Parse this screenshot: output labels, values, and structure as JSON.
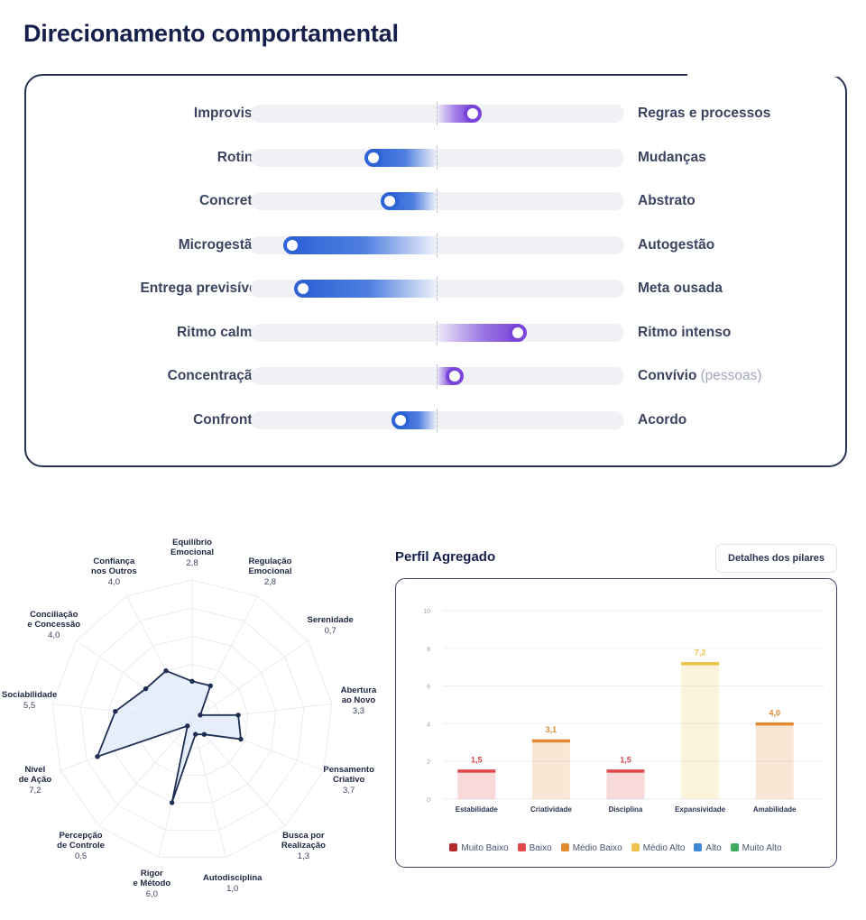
{
  "page": {
    "title": "Direcionamento comportamental"
  },
  "scales": [
    {
      "left": "Improviso",
      "right": "Regras e processos",
      "right_sub": "",
      "value": 0.2,
      "color": "purple"
    },
    {
      "left": "Rotina",
      "right": "Mudanças",
      "right_sub": "",
      "value": -0.35,
      "color": "blue"
    },
    {
      "left": "Concreto",
      "right": "Abstrato",
      "right_sub": "",
      "value": -0.26,
      "color": "blue"
    },
    {
      "left": "Microgestão",
      "right": "Autogestão",
      "right_sub": "",
      "value": -0.8,
      "color": "blue"
    },
    {
      "left": "Entrega previsível",
      "right": "Meta ousada",
      "right_sub": "",
      "value": -0.74,
      "color": "blue"
    },
    {
      "left": "Ritmo calmo",
      "right": "Ritmo intenso",
      "right_sub": "",
      "value": 0.45,
      "color": "purple"
    },
    {
      "left": "Concentração",
      "right": "Convívio",
      "right_sub": "(pessoas)",
      "value": 0.1,
      "color": "purple"
    },
    {
      "left": "Confronto",
      "right": "Acordo",
      "right_sub": "",
      "value": -0.2,
      "color": "blue"
    }
  ],
  "aggregate": {
    "title": "Perfil Agregado",
    "details_button": "Detalhes dos pilares"
  },
  "chart_data": [
    {
      "type": "radar",
      "scale_max": 10,
      "series": [
        {
          "values": [
            2.8,
            2.8,
            0.7,
            3.3,
            3.7,
            1.3,
            1.0,
            6.0,
            0.5,
            7.2,
            5.5,
            4.0,
            4.0
          ]
        }
      ],
      "axes": [
        {
          "name": [
            "Equilíbrio",
            "Emocional"
          ],
          "value_label": "2,8"
        },
        {
          "name": [
            "Regulação",
            "Emocional"
          ],
          "value_label": "2,8"
        },
        {
          "name": [
            "Serenidade"
          ],
          "value_label": "0,7"
        },
        {
          "name": [
            "Abertura",
            "ao Novo"
          ],
          "value_label": "3,3"
        },
        {
          "name": [
            "Pensamento",
            "Criativo"
          ],
          "value_label": "3,7"
        },
        {
          "name": [
            "Busca por",
            "Realização"
          ],
          "value_label": "1,3"
        },
        {
          "name": [
            "Autodisciplina"
          ],
          "value_label": "1,0"
        },
        {
          "name": [
            "Rigor",
            "e Método"
          ],
          "value_label": "6,0"
        },
        {
          "name": [
            "Percepção",
            "de Controle"
          ],
          "value_label": "0,5"
        },
        {
          "name": [
            "Nível",
            "de Ação"
          ],
          "value_label": "7,2"
        },
        {
          "name": [
            "Sociabilidade"
          ],
          "value_label": "5,5"
        },
        {
          "name": [
            "Conciliação",
            "e Concessão"
          ],
          "value_label": "4,0"
        },
        {
          "name": [
            "Confiança",
            "nos Outros"
          ],
          "value_label": "4,0"
        }
      ],
      "colors": {
        "line": "#1d2e52",
        "fill": "#dfe9fb",
        "grid": "#e9ebf0"
      }
    },
    {
      "type": "bar",
      "title": "Perfil Agregado",
      "categories": [
        "Estabilidade",
        "Criatividade",
        "Disciplina",
        "Expansividade",
        "Amabilidade"
      ],
      "values": [
        1.5,
        3.1,
        1.5,
        7.2,
        4.0
      ],
      "value_labels": [
        "1,5",
        "3,1",
        "1,5",
        "7,2",
        "4,0"
      ],
      "levels": [
        "Baixo",
        "Médio Baixo",
        "Baixo",
        "Médio Alto",
        "Médio Baixo"
      ],
      "ylim": [
        0,
        10
      ],
      "yticks": [
        0,
        2,
        4,
        6,
        8,
        10
      ],
      "grid": true,
      "legend_position": "bottom",
      "legend": [
        {
          "name": "Muito Baixo",
          "color": "#b22a2a"
        },
        {
          "name": "Baixo",
          "color": "#e0484a"
        },
        {
          "name": "Médio Baixo",
          "color": "#e0892f"
        },
        {
          "name": "Médio Alto",
          "color": "#ecc24c"
        },
        {
          "name": "Alto",
          "color": "#3f87d8"
        },
        {
          "name": "Muito Alto",
          "color": "#3faa5e"
        }
      ]
    }
  ]
}
